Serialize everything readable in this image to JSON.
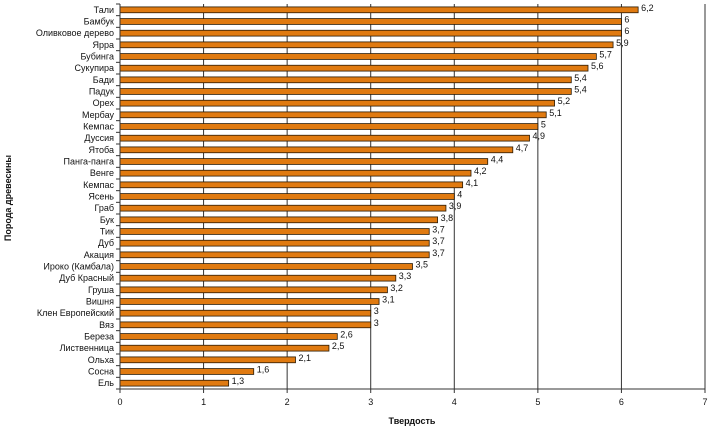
{
  "chart_data": {
    "type": "bar",
    "orientation": "horizontal",
    "categories": [
      "Тали",
      "Бамбук",
      "Оливковое дерево",
      "Ярра",
      "Бубинга",
      "Сукупира",
      "Бади",
      "Падук",
      "Орех",
      "Мербау",
      "Кемпас",
      "Дуссия",
      "Ятоба",
      "Панга-панга",
      "Венге",
      "Кемпас",
      "Ясень",
      "Граб",
      "Бук",
      "Тик",
      "Дуб",
      "Акация",
      "Ироко (Камбала)",
      "Дуб Красный",
      "Груша",
      "Вишня",
      "Клен Европейский",
      "Вяз",
      "Береза",
      "Лиственница",
      "Ольха",
      "Сосна",
      "Ель"
    ],
    "values": [
      6.2,
      6,
      6,
      5.9,
      5.7,
      5.6,
      5.4,
      5.4,
      5.2,
      5.1,
      5,
      4.9,
      4.7,
      4.4,
      4.2,
      4.1,
      4,
      3.9,
      3.8,
      3.7,
      3.7,
      3.7,
      3.5,
      3.3,
      3.2,
      3.1,
      3,
      3,
      2.6,
      2.5,
      2.1,
      1.6,
      1.3
    ],
    "value_labels": [
      "6,2",
      "6",
      "6",
      "5,9",
      "5,7",
      "5,6",
      "5,4",
      "5,4",
      "5,2",
      "5,1",
      "5",
      "4,9",
      "4,7",
      "4,4",
      "4,2",
      "4,1",
      "4",
      "3,9",
      "3,8",
      "3,7",
      "3,7",
      "3,7",
      "3,5",
      "3,3",
      "3,2",
      "3,1",
      "3",
      "3",
      "2,6",
      "2,5",
      "2,1",
      "1,6",
      "1,3"
    ],
    "xlabel": "Твердость",
    "ylabel": "Порода древесины",
    "xlim": [
      0,
      7
    ],
    "x_ticks": [
      "0",
      "1",
      "2",
      "3",
      "4",
      "5",
      "6",
      "7"
    ],
    "grid": "vertical",
    "legend": "none",
    "colors": {
      "bar_fill": "#E07A10",
      "bar_edge": "#2a1a05",
      "grid": "#333333"
    }
  }
}
